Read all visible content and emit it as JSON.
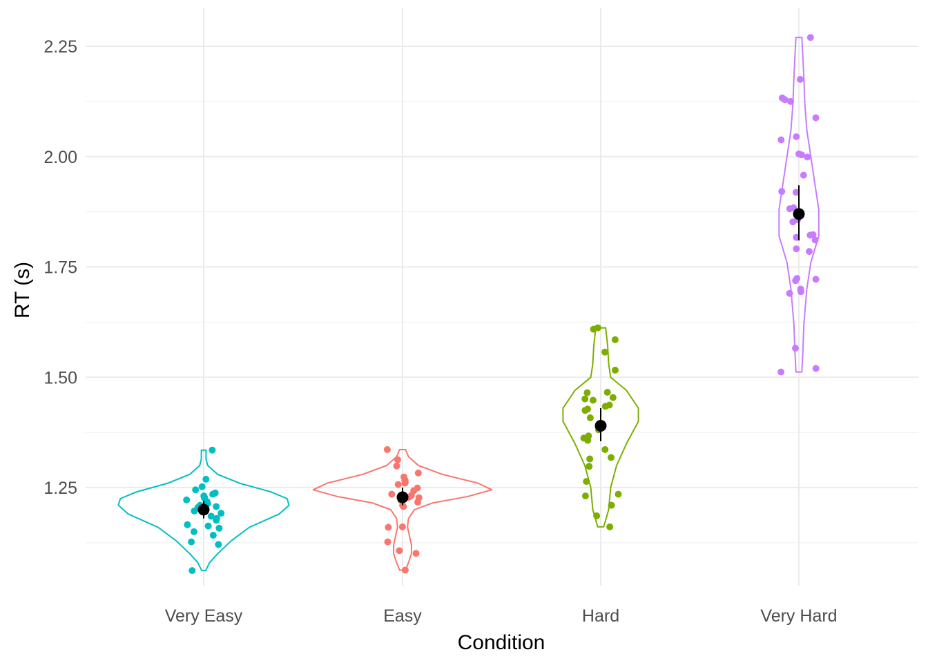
{
  "chart_data": {
    "type": "violin",
    "xlabel": "Condition",
    "ylabel": "RT (s)",
    "categories": [
      "Very Easy",
      "Easy",
      "Hard",
      "Very Hard"
    ],
    "ylim": [
      1.03,
      2.31
    ],
    "y_ticks": [
      1.25,
      1.5,
      1.75,
      2.0,
      2.25
    ],
    "y_tick_labels": [
      "1.25",
      "1.50",
      "1.75",
      "2.00",
      "2.25"
    ],
    "grid": true,
    "legend": "none",
    "series": [
      {
        "category": "Very Easy",
        "color": "#00BFC4",
        "mean": 1.2,
        "ci": [
          1.18,
          1.22
        ],
        "points": [
          1.335,
          1.269,
          1.252,
          1.245,
          1.238,
          1.235,
          1.231,
          1.228,
          1.226,
          1.222,
          1.218,
          1.214,
          1.21,
          1.207,
          1.205,
          1.2,
          1.197,
          1.192,
          1.185,
          1.18,
          1.176,
          1.166,
          1.163,
          1.158,
          1.15,
          1.142,
          1.127,
          1.121,
          1.062
        ]
      },
      {
        "category": "Easy",
        "color": "#F8766D",
        "mean": 1.228,
        "ci": [
          1.21,
          1.25
        ],
        "points": [
          1.336,
          1.313,
          1.299,
          1.283,
          1.274,
          1.267,
          1.266,
          1.262,
          1.26,
          1.257,
          1.249,
          1.243,
          1.235,
          1.232,
          1.228,
          1.227,
          1.221,
          1.217,
          1.21,
          1.207,
          1.161,
          1.16,
          1.127,
          1.107,
          1.101,
          1.063
        ]
      },
      {
        "category": "Hard",
        "color": "#7CAE00",
        "mean": 1.39,
        "ci": [
          1.355,
          1.43
        ],
        "points": [
          1.612,
          1.609,
          1.585,
          1.557,
          1.516,
          1.466,
          1.465,
          1.454,
          1.451,
          1.448,
          1.437,
          1.434,
          1.428,
          1.425,
          1.408,
          1.388,
          1.381,
          1.367,
          1.362,
          1.357,
          1.336,
          1.318,
          1.315,
          1.298,
          1.264,
          1.235,
          1.231,
          1.21,
          1.186,
          1.161
        ]
      },
      {
        "category": "Very Hard",
        "color": "#C77CFF",
        "mean": 1.87,
        "ci": [
          1.81,
          1.935
        ],
        "points": [
          2.27,
          2.175,
          2.133,
          2.129,
          2.125,
          2.088,
          2.045,
          2.038,
          2.006,
          2.004,
          1.999,
          1.958,
          1.921,
          1.919,
          1.884,
          1.882,
          1.857,
          1.852,
          1.823,
          1.822,
          1.817,
          1.811,
          1.791,
          1.785,
          1.724,
          1.722,
          1.719,
          1.7,
          1.694,
          1.69,
          1.566,
          1.52,
          1.512
        ]
      }
    ],
    "violins": [
      {
        "category": "Very Easy",
        "profile": [
          [
            1.062,
            0.01
          ],
          [
            1.08,
            0.03
          ],
          [
            1.1,
            0.07
          ],
          [
            1.13,
            0.14
          ],
          [
            1.16,
            0.23
          ],
          [
            1.19,
            0.38
          ],
          [
            1.21,
            0.43
          ],
          [
            1.225,
            0.42
          ],
          [
            1.24,
            0.34
          ],
          [
            1.26,
            0.18
          ],
          [
            1.28,
            0.07
          ],
          [
            1.3,
            0.02
          ],
          [
            1.315,
            0.012
          ],
          [
            1.335,
            0.012
          ]
        ]
      },
      {
        "category": "Easy",
        "profile": [
          [
            1.063,
            0.015
          ],
          [
            1.08,
            0.03
          ],
          [
            1.1,
            0.045
          ],
          [
            1.12,
            0.045
          ],
          [
            1.14,
            0.035
          ],
          [
            1.16,
            0.025
          ],
          [
            1.18,
            0.03
          ],
          [
            1.2,
            0.06
          ],
          [
            1.215,
            0.15
          ],
          [
            1.23,
            0.33
          ],
          [
            1.245,
            0.45
          ],
          [
            1.26,
            0.38
          ],
          [
            1.28,
            0.2
          ],
          [
            1.3,
            0.08
          ],
          [
            1.32,
            0.03
          ],
          [
            1.336,
            0.015
          ]
        ]
      },
      {
        "category": "Hard",
        "profile": [
          [
            1.161,
            0.015
          ],
          [
            1.2,
            0.04
          ],
          [
            1.25,
            0.05
          ],
          [
            1.3,
            0.08
          ],
          [
            1.35,
            0.13
          ],
          [
            1.4,
            0.19
          ],
          [
            1.43,
            0.19
          ],
          [
            1.47,
            0.13
          ],
          [
            1.5,
            0.05
          ],
          [
            1.53,
            0.04
          ],
          [
            1.57,
            0.035
          ],
          [
            1.612,
            0.025
          ]
        ]
      },
      {
        "category": "Very Hard",
        "profile": [
          [
            1.512,
            0.015
          ],
          [
            1.56,
            0.02
          ],
          [
            1.62,
            0.025
          ],
          [
            1.7,
            0.04
          ],
          [
            1.76,
            0.06
          ],
          [
            1.82,
            0.1
          ],
          [
            1.88,
            0.1
          ],
          [
            1.94,
            0.08
          ],
          [
            2.0,
            0.06
          ],
          [
            2.06,
            0.04
          ],
          [
            2.12,
            0.03
          ],
          [
            2.18,
            0.025
          ],
          [
            2.27,
            0.015
          ]
        ]
      }
    ]
  }
}
